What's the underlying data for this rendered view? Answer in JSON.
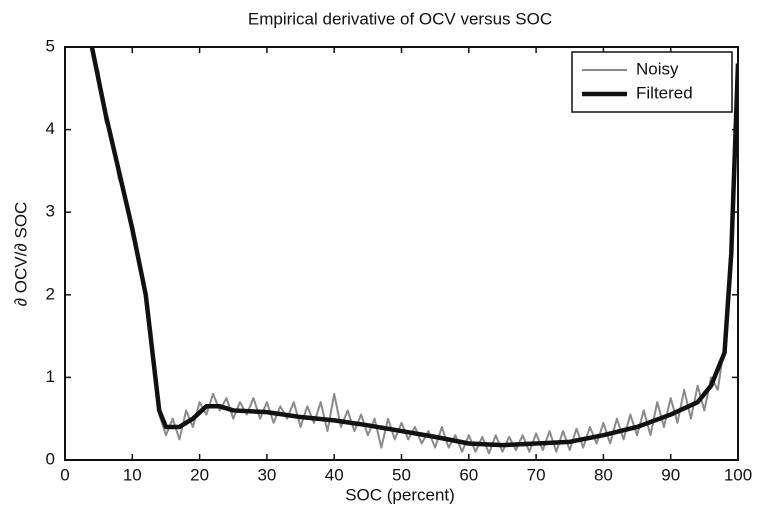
{
  "chart_data": {
    "type": "line",
    "title": "Empirical derivative of OCV versus SOC",
    "xlabel": "SOC (percent)",
    "ylabel": "∂ OCV/∂ SOC",
    "xlim": [
      0,
      100
    ],
    "xticks": [
      0,
      10,
      20,
      30,
      40,
      50,
      60,
      70,
      80,
      90,
      100
    ],
    "ylim": [
      0,
      5
    ],
    "yticks": [
      0,
      1,
      2,
      3,
      4,
      5
    ],
    "legend": "upper right",
    "series": [
      {
        "name": "Noisy",
        "color": "#8a8a8a",
        "x": [
          4,
          5,
          6,
          7,
          8,
          9,
          10,
          11,
          12,
          13,
          14,
          15,
          16,
          17,
          18,
          19,
          20,
          21,
          22,
          23,
          24,
          25,
          26,
          27,
          28,
          29,
          30,
          31,
          32,
          33,
          34,
          35,
          36,
          37,
          38,
          39,
          40,
          41,
          42,
          43,
          44,
          45,
          46,
          47,
          48,
          49,
          50,
          51,
          52,
          53,
          54,
          55,
          56,
          57,
          58,
          59,
          60,
          61,
          62,
          63,
          64,
          65,
          66,
          67,
          68,
          69,
          70,
          71,
          72,
          73,
          74,
          75,
          76,
          77,
          78,
          79,
          80,
          81,
          82,
          83,
          84,
          85,
          86,
          87,
          88,
          89,
          90,
          91,
          92,
          93,
          94,
          95,
          96,
          97,
          98,
          99,
          100
        ],
        "values": [
          4.9,
          4.7,
          4.1,
          3.9,
          3.4,
          3.2,
          2.7,
          2.45,
          1.9,
          1.35,
          0.55,
          0.3,
          0.5,
          0.25,
          0.6,
          0.4,
          0.7,
          0.55,
          0.8,
          0.6,
          0.75,
          0.5,
          0.7,
          0.55,
          0.75,
          0.5,
          0.7,
          0.45,
          0.65,
          0.5,
          0.7,
          0.4,
          0.65,
          0.45,
          0.7,
          0.35,
          0.8,
          0.4,
          0.6,
          0.35,
          0.55,
          0.3,
          0.5,
          0.15,
          0.5,
          0.25,
          0.45,
          0.25,
          0.4,
          0.2,
          0.35,
          0.15,
          0.4,
          0.15,
          0.3,
          0.1,
          0.3,
          0.1,
          0.28,
          0.08,
          0.3,
          0.1,
          0.28,
          0.12,
          0.3,
          0.1,
          0.32,
          0.12,
          0.35,
          0.1,
          0.35,
          0.12,
          0.38,
          0.15,
          0.4,
          0.2,
          0.45,
          0.2,
          0.5,
          0.25,
          0.55,
          0.3,
          0.6,
          0.3,
          0.7,
          0.4,
          0.75,
          0.45,
          0.85,
          0.5,
          0.9,
          0.6,
          1.0,
          0.85,
          1.4,
          2.4,
          4.6
        ]
      },
      {
        "name": "Filtered",
        "color": "#111111",
        "x": [
          4,
          6,
          8,
          10,
          12,
          13,
          14,
          15,
          17,
          19,
          21,
          23,
          25,
          30,
          35,
          40,
          45,
          50,
          55,
          60,
          65,
          70,
          75,
          80,
          85,
          90,
          94,
          96,
          98,
          99,
          100
        ],
        "values": [
          5.0,
          4.2,
          3.5,
          2.8,
          2.0,
          1.3,
          0.6,
          0.4,
          0.4,
          0.5,
          0.65,
          0.65,
          0.6,
          0.58,
          0.52,
          0.48,
          0.42,
          0.35,
          0.28,
          0.2,
          0.18,
          0.2,
          0.22,
          0.3,
          0.4,
          0.55,
          0.7,
          0.9,
          1.3,
          2.5,
          4.8
        ]
      }
    ]
  }
}
